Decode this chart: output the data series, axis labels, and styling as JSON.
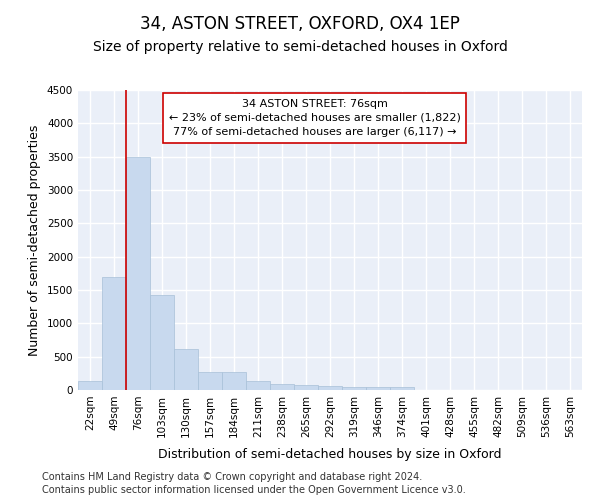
{
  "title1": "34, ASTON STREET, OXFORD, OX4 1EP",
  "title2": "Size of property relative to semi-detached houses in Oxford",
  "xlabel": "Distribution of semi-detached houses by size in Oxford",
  "ylabel": "Number of semi-detached properties",
  "categories": [
    "22sqm",
    "49sqm",
    "76sqm",
    "103sqm",
    "130sqm",
    "157sqm",
    "184sqm",
    "211sqm",
    "238sqm",
    "265sqm",
    "292sqm",
    "319sqm",
    "346sqm",
    "374sqm",
    "401sqm",
    "428sqm",
    "455sqm",
    "482sqm",
    "509sqm",
    "536sqm",
    "563sqm"
  ],
  "values": [
    130,
    1700,
    3500,
    1430,
    620,
    270,
    270,
    130,
    95,
    80,
    55,
    40,
    40,
    50,
    0,
    0,
    0,
    0,
    0,
    0,
    0
  ],
  "bar_color": "#c8d9ee",
  "bar_edge_color": "#a8c0d8",
  "vline_index": 2,
  "vline_color": "#cc0000",
  "annotation_text": "34 ASTON STREET: 76sqm\n← 23% of semi-detached houses are smaller (1,822)\n77% of semi-detached houses are larger (6,117) →",
  "annotation_box_color": "white",
  "annotation_box_edge": "#cc0000",
  "ylim": [
    0,
    4500
  ],
  "yticks": [
    0,
    500,
    1000,
    1500,
    2000,
    2500,
    3000,
    3500,
    4000,
    4500
  ],
  "footer1": "Contains HM Land Registry data © Crown copyright and database right 2024.",
  "footer2": "Contains public sector information licensed under the Open Government Licence v3.0.",
  "bg_color": "#ffffff",
  "plot_bg_color": "#eaeff8",
  "grid_color": "#ffffff",
  "title1_fontsize": 12,
  "title2_fontsize": 10,
  "tick_fontsize": 7.5,
  "label_fontsize": 9,
  "annot_fontsize": 8,
  "footer_fontsize": 7
}
